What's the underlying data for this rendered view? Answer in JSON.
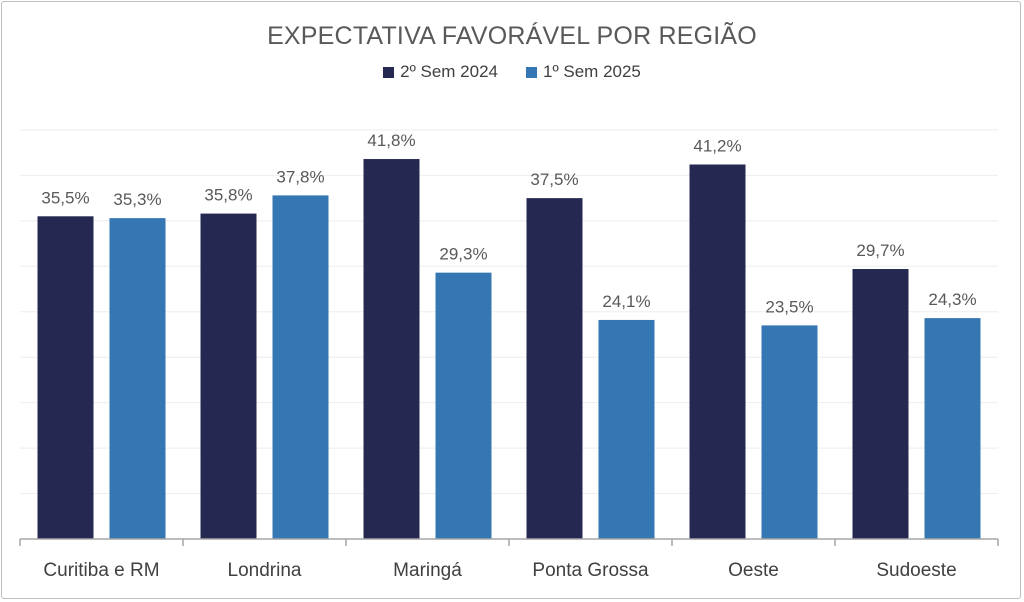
{
  "chart_data": {
    "type": "bar",
    "title": "EXPECTATIVA FAVORÁVEL POR REGIÃO",
    "categories": [
      "Curitiba e RM",
      "Londrina",
      "Maringá",
      "Ponta Grossa",
      "Oeste",
      "Sudoeste"
    ],
    "series": [
      {
        "name": "2º Sem 2024",
        "color": "#252850",
        "values": [
          35.5,
          35.8,
          41.8,
          37.5,
          41.2,
          29.7
        ],
        "labels": [
          "35,5%",
          "35,8%",
          "41,8%",
          "37,5%",
          "41,2%",
          "29,7%"
        ]
      },
      {
        "name": "1º Sem 2025",
        "color": "#3477b2",
        "values": [
          35.3,
          37.8,
          29.3,
          24.1,
          23.5,
          24.3
        ],
        "labels": [
          "35,3%",
          "37,8%",
          "29,3%",
          "24,1%",
          "23,5%",
          "24,3%"
        ]
      }
    ],
    "ylim": [
      0,
      45
    ],
    "grid": true,
    "legend_position": "top-center",
    "xlabel": "",
    "ylabel": ""
  }
}
